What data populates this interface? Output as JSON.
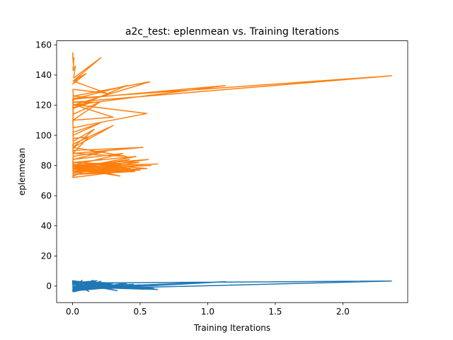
{
  "chart_data": {
    "type": "line",
    "title": "a2c_test: eplenmean vs. Training Iterations",
    "xlabel": "Training Iterations",
    "ylabel": "eplenmean",
    "xlim": [
      -0.118,
      2.48
    ],
    "ylim": [
      -10.93,
      162.7
    ],
    "xticks": [
      0.0,
      0.5,
      1.0,
      1.5,
      2.0
    ],
    "xtick_labels": [
      "0.0",
      "0.5",
      "1.0",
      "1.5",
      "2.0"
    ],
    "yticks": [
      0,
      20,
      40,
      60,
      80,
      100,
      120,
      140,
      160
    ],
    "ytick_labels": [
      "0",
      "20",
      "40",
      "60",
      "80",
      "100",
      "120",
      "140",
      "160"
    ],
    "grid": false,
    "legend": "none",
    "series": [
      {
        "color": "#1f77b4",
        "x": [
          0.0,
          0.004,
          0.02,
          0.008,
          0.15,
          0.002,
          0.21,
          0.005,
          0.09,
          0.003,
          0.3,
          0.006,
          0.45,
          0.004,
          0.5,
          0.003,
          0.55,
          0.002,
          0.42,
          0.005,
          0.28,
          0.001,
          0.36,
          0.004,
          0.6,
          0.002,
          0.53,
          0.003,
          0.63,
          0.001,
          0.33,
          0.003,
          0.18,
          0.002,
          1.13,
          0.004,
          0.25,
          0.002,
          2.36,
          0.003,
          0.12,
          0.002,
          0.4,
          0.001,
          0.07,
          0.002
        ],
        "y": [
          4.0,
          -3.5,
          3.5,
          -2.5,
          3.8,
          -3.0,
          3.2,
          -2.0,
          2.8,
          -3.8,
          2.0,
          -1.0,
          1.2,
          -2.8,
          0.8,
          -1.5,
          0.5,
          -2.0,
          0.2,
          -3.2,
          -0.5,
          1.0,
          -1.2,
          2.5,
          -1.5,
          3.0,
          -2.0,
          -0.5,
          -2.2,
          3.5,
          -3.0,
          2.0,
          3.6,
          -2.5,
          2.9,
          -1.0,
          1.5,
          -2.0,
          3.4,
          2.0,
          -3.5,
          3.0,
          1.8,
          -2.6,
          3.9,
          -1.8
        ]
      },
      {
        "color": "#ff7f0e",
        "x": [
          0.0,
          0.005,
          0.01,
          0.003,
          0.02,
          0.008,
          0.21,
          0.004,
          0.06,
          0.002,
          0.1,
          0.005,
          0.25,
          0.003,
          0.005,
          0.12,
          0.01,
          0.004,
          0.15,
          0.006,
          0.003,
          0.57,
          0.005,
          0.002,
          0.4,
          0.004,
          0.003,
          1.13,
          0.002,
          0.005,
          0.006,
          2.36,
          0.004,
          0.003,
          0.2,
          0.004,
          0.003,
          0.55,
          0.005,
          0.3,
          0.002,
          0.005,
          0.003,
          0.2,
          0.004,
          0.004,
          0.16,
          0.003,
          0.003,
          0.12,
          0.004,
          0.006,
          0.3,
          0.002,
          0.005,
          0.4,
          0.003,
          0.004,
          0.52,
          0.003,
          0.006,
          0.27,
          0.004,
          0.002,
          0.37,
          0.005,
          0.003,
          0.47,
          0.004,
          0.005,
          0.56,
          0.002,
          0.004,
          0.42,
          0.003,
          0.005,
          0.49,
          0.004,
          0.003,
          0.52,
          0.002,
          0.004,
          0.58,
          0.003,
          0.005,
          0.63,
          0.003,
          0.004,
          0.55,
          0.002,
          0.005,
          0.46,
          0.004,
          0.003,
          0.5,
          0.004,
          0.002,
          0.41,
          0.005,
          0.003,
          0.4,
          0.004,
          0.002,
          0.36,
          0.005,
          0.003,
          0.43,
          0.004,
          0.005,
          0.3,
          0.003,
          0.004,
          0.35,
          0.002,
          0.005,
          0.28,
          0.003,
          0.004,
          0.22,
          0.003,
          0.005,
          0.2
        ],
        "y": [
          155.0,
          148.0,
          151.5,
          143.0,
          146.0,
          138.0,
          151.5,
          136.0,
          140.0,
          134.0,
          141.0,
          136.0,
          128.0,
          130.5,
          126.0,
          125.0,
          124.0,
          122.0,
          122.0,
          118.0,
          120.0,
          135.5,
          126.0,
          118.0,
          133.0,
          124.0,
          120.0,
          133.0,
          124.0,
          114.0,
          122.0,
          139.5,
          124.5,
          110.0,
          122.0,
          114.0,
          105.0,
          114.5,
          120.5,
          112.0,
          110.0,
          104.0,
          100.0,
          108.0,
          102.0,
          96.0,
          104.0,
          92.0,
          88.0,
          99.0,
          98.0,
          92.0,
          106.5,
          94.0,
          88.0,
          86.0,
          92.0,
          88.0,
          92.0,
          90.0,
          84.0,
          90.0,
          86.0,
          80.0,
          88.0,
          84.0,
          78.0,
          86.0,
          82.0,
          77.0,
          84.0,
          80.0,
          76.0,
          84.0,
          78.0,
          75.0,
          82.0,
          80.0,
          76.0,
          80.0,
          82.0,
          78.0,
          80.0,
          78.0,
          79.0,
          81.0,
          79.0,
          76.0,
          78.0,
          82.0,
          74.0,
          76.0,
          80.0,
          78.0,
          77.0,
          74.0,
          80.0,
          79.0,
          75.0,
          80.0,
          77.0,
          74.0,
          72.0,
          76.0,
          79.0,
          79.0,
          78.0,
          74.0,
          80.0,
          76.0,
          76.0,
          78.0,
          73.0,
          80.0,
          78.0,
          75.0,
          81.0,
          74.0,
          76.0,
          78.0,
          73.0,
          80.0
        ]
      }
    ]
  }
}
